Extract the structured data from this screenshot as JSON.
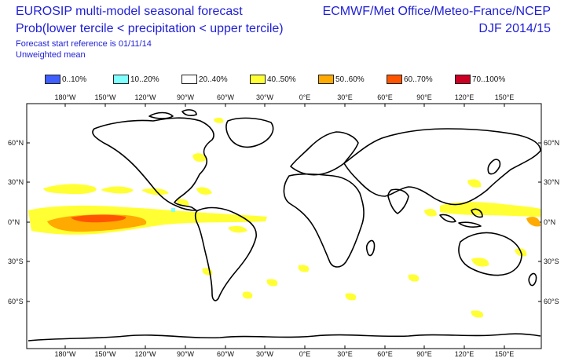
{
  "header": {
    "title_left_1": "EUROSIP multi-model seasonal forecast",
    "title_left_2": "Prob(lower tercile < precipitation < upper tercile)",
    "subtitle_1": "Forecast start reference is 01/11/14",
    "subtitle_2": "Unweighted mean",
    "title_right_1": "ECMWF/Met Office/Meteo-France/NCEP",
    "title_right_2": "DJF 2014/15"
  },
  "legend": [
    {
      "label": "0..10%",
      "color": "#3f5fff"
    },
    {
      "label": "10..20%",
      "color": "#80ffff"
    },
    {
      "label": "20..40%",
      "color": "#ffffff"
    },
    {
      "label": "40..50%",
      "color": "#ffff33"
    },
    {
      "label": "50..60%",
      "color": "#ffaa00"
    },
    {
      "label": "60..70%",
      "color": "#ff5500"
    },
    {
      "label": "70..100%",
      "color": "#cc0022"
    }
  ],
  "axes": {
    "lon_ticks": [
      "180°W",
      "150°W",
      "120°W",
      "90°W",
      "60°W",
      "30°W",
      "0°E",
      "30°E",
      "60°E",
      "90°E",
      "120°E",
      "150°E"
    ],
    "lat_ticks": [
      "60°N",
      "30°N",
      "0°N",
      "30°S",
      "60°S"
    ]
  }
}
